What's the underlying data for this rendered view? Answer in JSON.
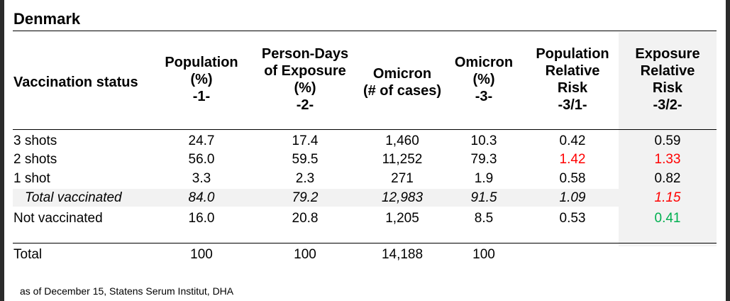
{
  "title": "Denmark",
  "headers": {
    "c0": [
      "Vaccination status"
    ],
    "c1": [
      "Population",
      "(%)",
      "-1-"
    ],
    "c2": [
      "Person-Days",
      "of Exposure",
      "(%)",
      "-2-"
    ],
    "c3": [
      "Omicron",
      "(# of cases)"
    ],
    "c4": [
      "Omicron",
      "(%)",
      "-3-"
    ],
    "c5": [
      "Population",
      "Relative",
      "Risk",
      "-3/1-"
    ],
    "c6": [
      "Exposure",
      "Relative",
      "Risk",
      "-3/2-"
    ]
  },
  "rows": [
    [
      "3 shots",
      "24.7",
      "17.4",
      "1,460",
      "10.3",
      "0.42",
      "0.59"
    ],
    [
      "2 shots",
      "56.0",
      "59.5",
      "11,252",
      "79.3",
      "1.42",
      "1.33"
    ],
    [
      "1 shot",
      "3.3",
      "2.3",
      "271",
      "1.9",
      "0.58",
      "0.82"
    ],
    [
      "Total vaccinated",
      "84.0",
      "79.2",
      "12,983",
      "91.5",
      "1.09",
      "1.15"
    ],
    [
      "Not vaccinated",
      "16.0",
      "20.8",
      "1,205",
      "8.5",
      "0.53",
      "0.41"
    ]
  ],
  "total_row": [
    "Total",
    "100",
    "100",
    "14,188",
    "100",
    "",
    ""
  ],
  "colors": {
    "high": "#ff0000",
    "low": "#00b050",
    "shade": "#f2f2f2"
  },
  "note": "as of December 15, Statens Serum Institut, DHA"
}
